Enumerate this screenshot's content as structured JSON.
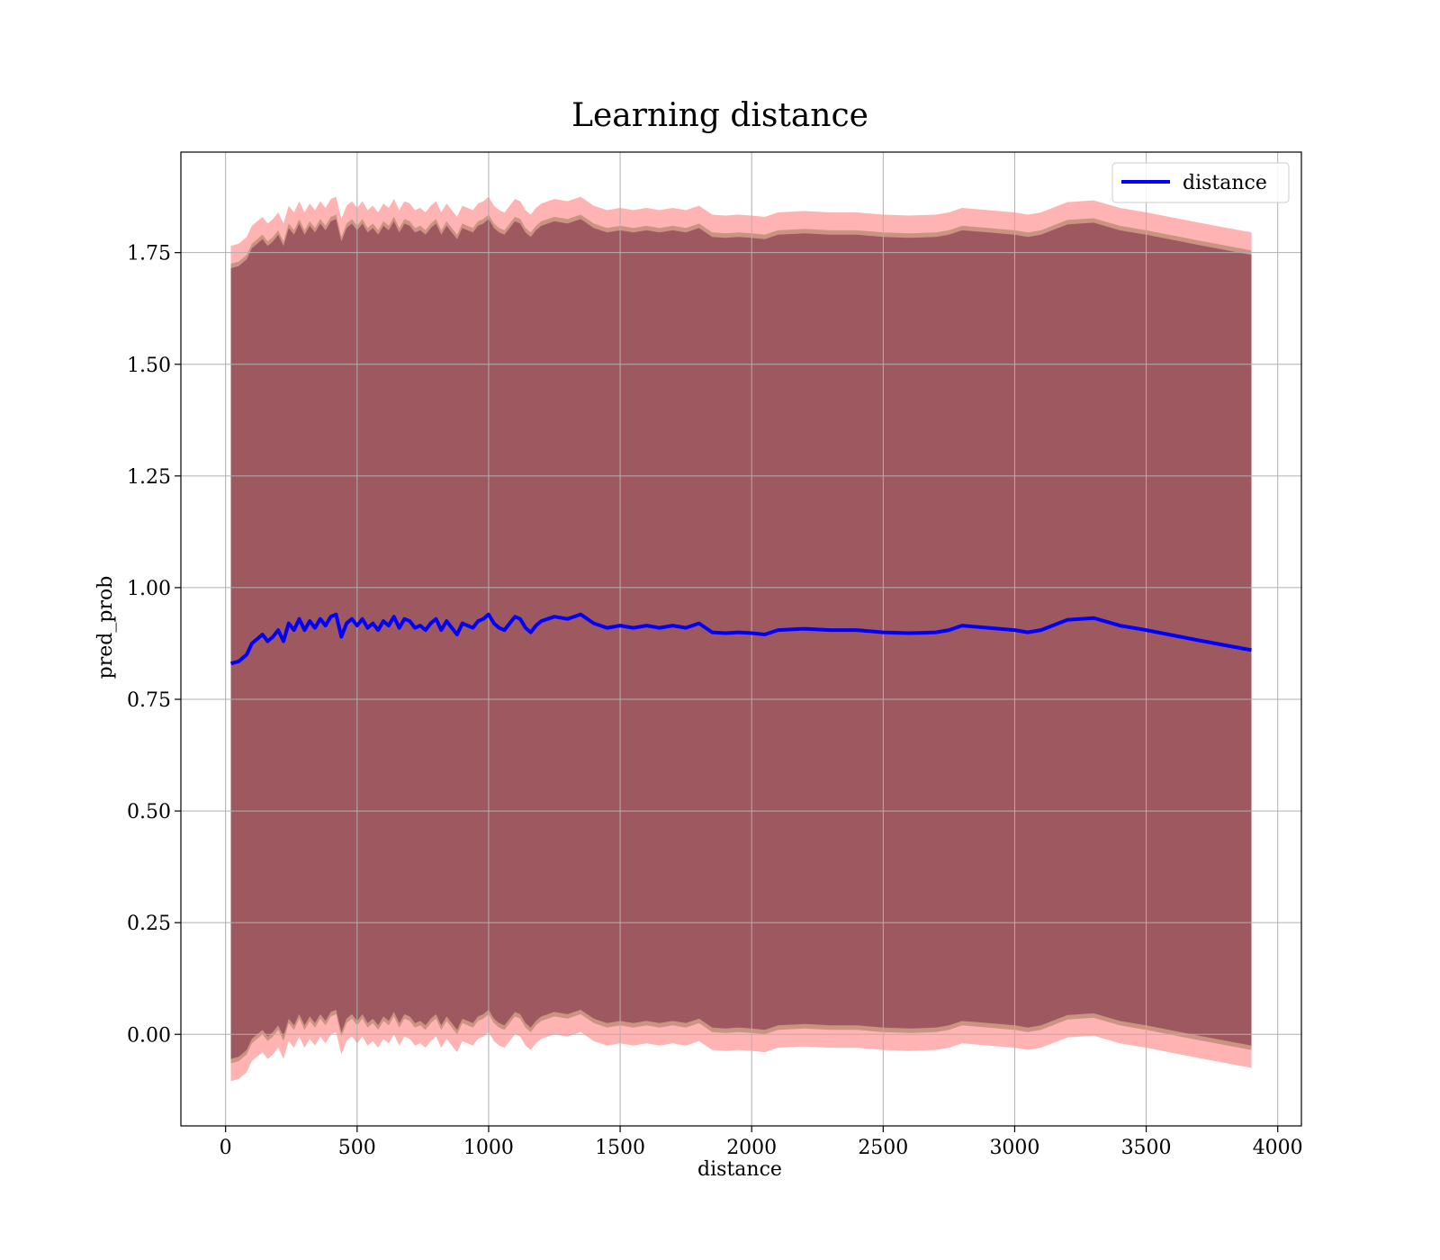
{
  "chart_data": {
    "type": "line",
    "title": "Learning distance",
    "xlabel": "distance",
    "ylabel": "pred_prob",
    "xlim": [
      -170,
      4090
    ],
    "ylim": [
      -0.205,
      1.975
    ],
    "xticks": [
      0,
      500,
      1000,
      1500,
      2000,
      2500,
      3000,
      3500,
      4000
    ],
    "xtick_labels": [
      "0",
      "500",
      "1000",
      "1500",
      "2000",
      "2500",
      "3000",
      "3500",
      "4000"
    ],
    "yticks": [
      0.0,
      0.25,
      0.5,
      0.75,
      1.0,
      1.25,
      1.5,
      1.75
    ],
    "ytick_labels": [
      "0.00",
      "0.25",
      "0.50",
      "0.75",
      "1.00",
      "1.25",
      "1.50",
      "1.75"
    ],
    "grid": true,
    "legend_position": "upper right",
    "bands": [
      {
        "offset": 0.935,
        "color": "#ff8080",
        "opacity": 0.6
      },
      {
        "offset": 0.895,
        "color": "#a0785a",
        "opacity": 0.55
      },
      {
        "offset": 0.885,
        "color": "#7a2a45",
        "opacity": 0.55
      }
    ],
    "band_center_color": "#a0707a",
    "series": [
      {
        "name": "distance",
        "color": "#0000ff",
        "x": [
          20,
          50,
          80,
          100,
          120,
          140,
          160,
          180,
          200,
          220,
          240,
          260,
          280,
          300,
          320,
          340,
          360,
          380,
          400,
          420,
          440,
          460,
          480,
          500,
          520,
          540,
          560,
          580,
          600,
          620,
          640,
          660,
          680,
          700,
          720,
          740,
          760,
          780,
          800,
          820,
          840,
          860,
          880,
          900,
          920,
          940,
          960,
          980,
          1000,
          1020,
          1040,
          1060,
          1080,
          1100,
          1120,
          1140,
          1160,
          1180,
          1200,
          1250,
          1300,
          1350,
          1400,
          1450,
          1500,
          1550,
          1600,
          1650,
          1700,
          1750,
          1800,
          1850,
          1900,
          1950,
          2000,
          2050,
          2100,
          2200,
          2300,
          2400,
          2500,
          2600,
          2700,
          2750,
          2800,
          2900,
          3000,
          3050,
          3100,
          3200,
          3300,
          3400,
          3500,
          3700,
          3900
        ],
        "y": [
          0.83,
          0.835,
          0.85,
          0.875,
          0.885,
          0.895,
          0.88,
          0.89,
          0.905,
          0.88,
          0.92,
          0.905,
          0.93,
          0.905,
          0.925,
          0.91,
          0.93,
          0.915,
          0.935,
          0.94,
          0.89,
          0.92,
          0.93,
          0.915,
          0.93,
          0.91,
          0.92,
          0.905,
          0.925,
          0.915,
          0.935,
          0.91,
          0.93,
          0.925,
          0.91,
          0.915,
          0.905,
          0.92,
          0.93,
          0.905,
          0.925,
          0.91,
          0.895,
          0.92,
          0.915,
          0.91,
          0.925,
          0.93,
          0.94,
          0.92,
          0.91,
          0.905,
          0.92,
          0.935,
          0.93,
          0.91,
          0.9,
          0.915,
          0.925,
          0.935,
          0.93,
          0.94,
          0.92,
          0.91,
          0.915,
          0.91,
          0.915,
          0.91,
          0.915,
          0.91,
          0.92,
          0.9,
          0.898,
          0.9,
          0.898,
          0.895,
          0.905,
          0.908,
          0.905,
          0.905,
          0.9,
          0.898,
          0.9,
          0.905,
          0.915,
          0.91,
          0.905,
          0.9,
          0.905,
          0.928,
          0.932,
          0.915,
          0.905,
          0.882,
          0.86
        ]
      }
    ]
  }
}
